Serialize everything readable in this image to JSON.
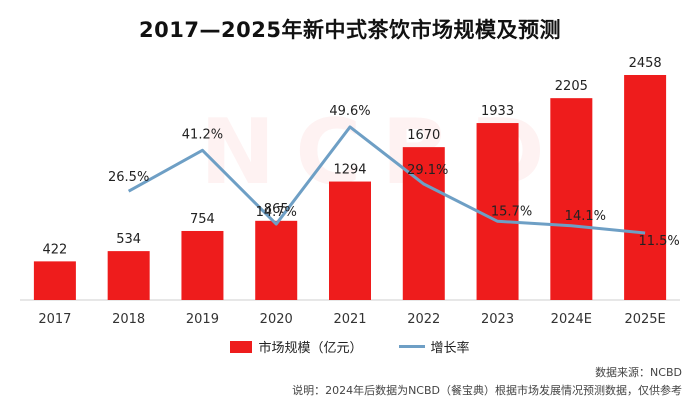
{
  "chart_data": {
    "type": "bar+line",
    "title": "2017—2025年新中式茶饮市场规模及预测",
    "categories": [
      "2017",
      "2018",
      "2019",
      "2020",
      "2021",
      "2022",
      "2023",
      "2024E",
      "2025E"
    ],
    "series": [
      {
        "name": "市场规模（亿元）",
        "kind": "bar",
        "color": "#ee1c1c",
        "values": [
          422,
          534,
          754,
          865,
          1294,
          1670,
          1933,
          2205,
          2458
        ],
        "labels": [
          "422",
          "534",
          "754",
          "865",
          "1294",
          "1670",
          "1933",
          "2205",
          "2458"
        ]
      },
      {
        "name": "增长率",
        "kind": "line",
        "color": "#6e9fc5",
        "values": [
          null,
          26.5,
          41.2,
          14.7,
          49.6,
          29.1,
          15.7,
          14.1,
          11.5
        ],
        "labels": [
          "",
          "26.5%",
          "41.2%",
          "14.7%",
          "49.6%",
          "29.1%",
          "15.7%",
          "14.1%",
          "11.5%"
        ]
      }
    ],
    "bar_ylim": [
      0,
      2600
    ],
    "line_ylim": [
      0,
      60
    ],
    "grid": false,
    "legend_position": "bottom"
  },
  "watermark_text": "NCBD",
  "legend": {
    "bar_label": "市场规模（亿元）",
    "line_label": "增长率"
  },
  "source_text": "数据来源：NCBD",
  "note_text": "说明：2024年后数据为NCBD（餐宝典）根据市场发展情况预测数据，仅供参考"
}
